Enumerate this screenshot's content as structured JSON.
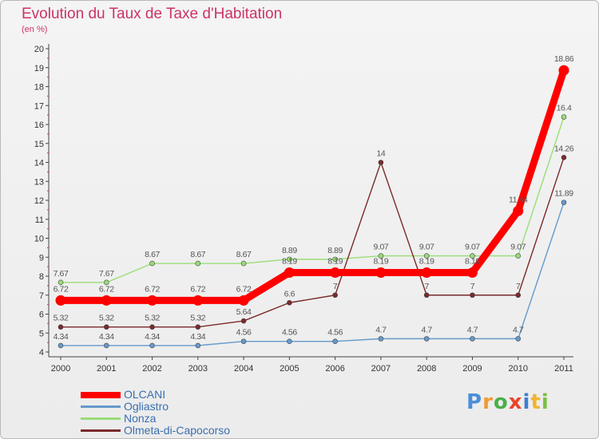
{
  "title": "Evolution du Taux de Taxe d'Habitation",
  "subtitle": "(en %)",
  "logo": {
    "letters": [
      "P",
      "r",
      "o",
      "x",
      "i",
      "t",
      "i"
    ]
  },
  "chart_data": {
    "type": "line",
    "title": "Evolution du Taux de Taxe d'Habitation",
    "ylabel": "(en %)",
    "xlabel": "",
    "x": [
      "2000",
      "2001",
      "2002",
      "2003",
      "2004",
      "2005",
      "2006",
      "2007",
      "2008",
      "2009",
      "2010",
      "2011"
    ],
    "ylim": [
      4,
      20
    ],
    "yticks": [
      4,
      5,
      6,
      7,
      8,
      9,
      10,
      11,
      12,
      13,
      14,
      15,
      16,
      17,
      18,
      19,
      20
    ],
    "grid": false,
    "legend": "bottom-left",
    "series": [
      {
        "name": "OLCANI",
        "color": "#ff0000",
        "values": [
          6.72,
          6.72,
          6.72,
          6.72,
          6.72,
          8.19,
          8.19,
          8.19,
          8.19,
          8.19,
          11.44,
          18.86
        ],
        "labels": [
          "6.72",
          "6.72",
          "6.72",
          "6.72",
          "6.72",
          "8.19",
          "8.19",
          "8.19",
          "8.19",
          "8.19",
          "11.44",
          "18.86"
        ]
      },
      {
        "name": "Ogliastro",
        "color": "#6699cc",
        "values": [
          4.34,
          4.34,
          4.34,
          4.34,
          4.56,
          4.56,
          4.56,
          4.7,
          4.7,
          4.7,
          4.7,
          11.89
        ],
        "labels": [
          "4.34",
          "4.34",
          "4.34",
          "4.34",
          "4.56",
          "4.56",
          "4.56",
          "4.7",
          "4.7",
          "4.7",
          "4.7",
          "11.89"
        ]
      },
      {
        "name": "Nonza",
        "color": "#99dd77",
        "values": [
          7.67,
          7.67,
          8.67,
          8.67,
          8.67,
          8.89,
          8.89,
          9.07,
          9.07,
          9.07,
          9.07,
          16.4
        ],
        "labels": [
          "7.67",
          "7.67",
          "8.67",
          "8.67",
          "8.67",
          "8.89",
          "8.89",
          "9.07",
          "9.07",
          "9.07",
          "9.07",
          "16.4"
        ]
      },
      {
        "name": "Olmeta-di-Capocorso",
        "color": "#7a2a2a",
        "values": [
          5.32,
          5.32,
          5.32,
          5.32,
          5.64,
          6.6,
          7,
          14,
          7,
          7,
          7,
          14.26
        ],
        "labels": [
          "5.32",
          "5.32",
          "5.32",
          "5.32",
          "5.64",
          "6.6",
          "7",
          "14",
          "7",
          "7",
          "7",
          "14.26"
        ]
      }
    ]
  }
}
